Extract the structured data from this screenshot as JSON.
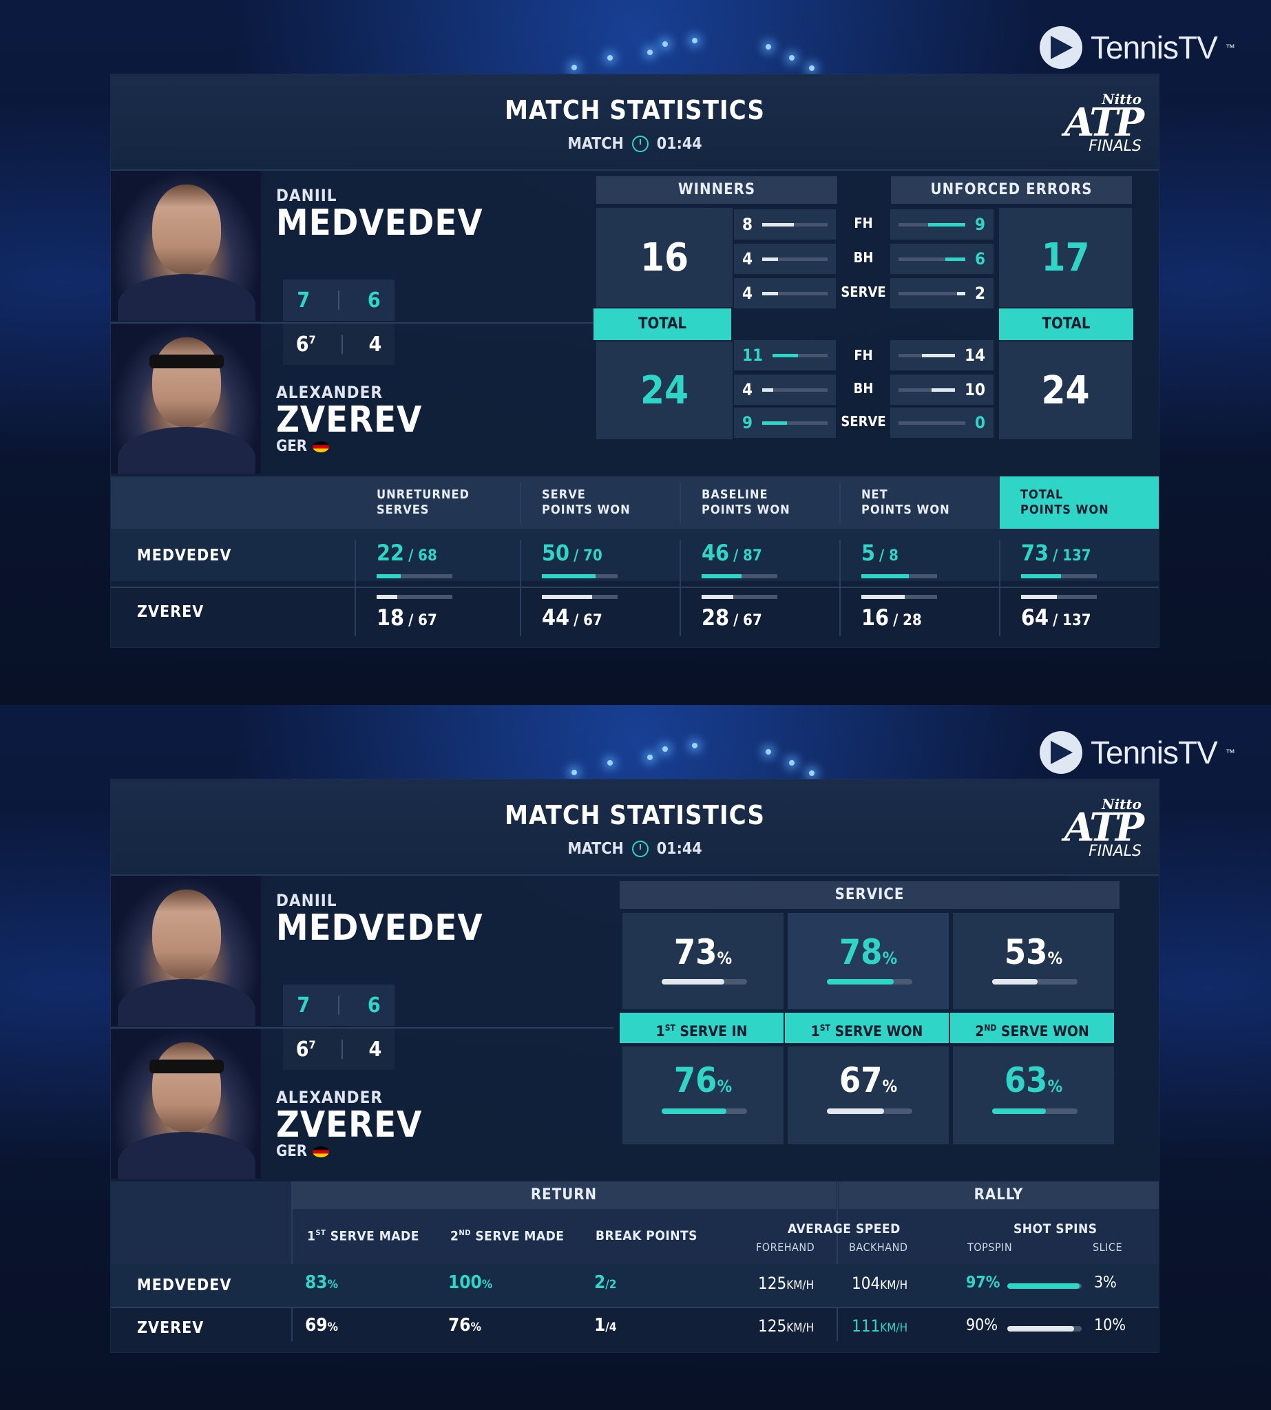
{
  "brand": {
    "tennis_tv": "TennisTV",
    "tm": "™",
    "atp_top": "Nitto",
    "atp_mid": "ATP",
    "atp_bottom": "FINALS"
  },
  "colors": {
    "accent": "#2fd6c8",
    "panel": "#12213a"
  },
  "header": {
    "title": "MATCH STATISTICS",
    "match_label": "MATCH",
    "time": "01:44"
  },
  "players": {
    "p1": {
      "first": "DANIIL",
      "last": "MEDVEDEV",
      "sets": [
        "7",
        "6"
      ]
    },
    "p2": {
      "first": "ALEXANDER",
      "last": "ZVEREV",
      "country": "GER",
      "sets": [
        "6",
        "4"
      ],
      "tiebreak": "7"
    }
  },
  "winners": {
    "label": "WINNERS",
    "total_label": "TOTAL",
    "p1_total": "16",
    "p2_total": "24",
    "p1": {
      "fh": "8",
      "bh": "4",
      "serve": "4"
    },
    "p2": {
      "fh": "11",
      "bh": "4",
      "serve": "9"
    }
  },
  "shots": {
    "fh": "FH",
    "bh": "BH",
    "serve": "SERVE"
  },
  "unforced": {
    "label": "UNFORCED ERRORS",
    "total_label": "TOTAL",
    "p1_total": "17",
    "p2_total": "24",
    "p1": {
      "fh": "9",
      "bh": "6",
      "serve": "2"
    },
    "p2": {
      "fh": "14",
      "bh": "10",
      "serve": "0"
    }
  },
  "points_table": {
    "headers": [
      [
        "UNRETURNED",
        "SERVES"
      ],
      [
        "SERVE",
        "POINTS WON"
      ],
      [
        "BASELINE",
        "POINTS WON"
      ],
      [
        "NET",
        "POINTS WON"
      ],
      [
        "TOTAL",
        "POINTS WON"
      ]
    ],
    "rows": [
      {
        "name": "MEDVEDEV",
        "vals": [
          [
            "22",
            "/ 68"
          ],
          [
            "50",
            "/ 70"
          ],
          [
            "46",
            "/ 87"
          ],
          [
            "5",
            "/ 8"
          ],
          [
            "73",
            "/ 137"
          ]
        ],
        "fractions": [
          0.32,
          0.71,
          0.53,
          0.63,
          0.53
        ]
      },
      {
        "name": "ZVEREV",
        "vals": [
          [
            "18",
            "/ 67"
          ],
          [
            "44",
            "/ 67"
          ],
          [
            "28",
            "/ 67"
          ],
          [
            "16",
            "/ 28"
          ],
          [
            "64",
            "/ 137"
          ]
        ],
        "fractions": [
          0.27,
          0.66,
          0.42,
          0.57,
          0.47
        ]
      }
    ]
  },
  "service": {
    "label": "SERVICE",
    "cols": [
      {
        "a": "1",
        "b": "ST",
        "c": " SERVE IN"
      },
      {
        "a": "1",
        "b": "ST",
        "c": " SERVE WON"
      },
      {
        "a": "2",
        "b": "ND",
        "c": " SERVE WON"
      }
    ],
    "pct": "%",
    "p1": [
      "73",
      "78",
      "53"
    ],
    "p2": [
      "76",
      "67",
      "63"
    ]
  },
  "return": {
    "label": "RETURN",
    "cols": [
      {
        "a": "1",
        "b": "ST",
        "c": " SERVE MADE"
      },
      {
        "a": "2",
        "b": "ND",
        "c": " SERVE MADE"
      },
      {
        "a": "",
        "b": "",
        "c": "BREAK POINTS"
      }
    ],
    "p1": [
      [
        "83",
        "%"
      ],
      [
        "100",
        "%"
      ],
      [
        "2",
        "/2"
      ]
    ],
    "p2": [
      [
        "69",
        "%"
      ],
      [
        "76",
        "%"
      ],
      [
        "1",
        "/4"
      ]
    ]
  },
  "rally": {
    "label": "RALLY",
    "avg_speed": "AVERAGE SPEED",
    "forehand": "FOREHAND",
    "backhand": "BACKHAND",
    "shot_spins": "SHOT SPINS",
    "topspin": "TOPSPIN",
    "slice": "SLICE",
    "unit": "KM/H",
    "p1": {
      "fh": "125",
      "bh": "104",
      "top": "97%",
      "slice": "3%",
      "top_frac": 0.97
    },
    "p2": {
      "fh": "125",
      "bh": "111",
      "top": "90%",
      "slice": "10%",
      "top_frac": 0.9
    }
  }
}
